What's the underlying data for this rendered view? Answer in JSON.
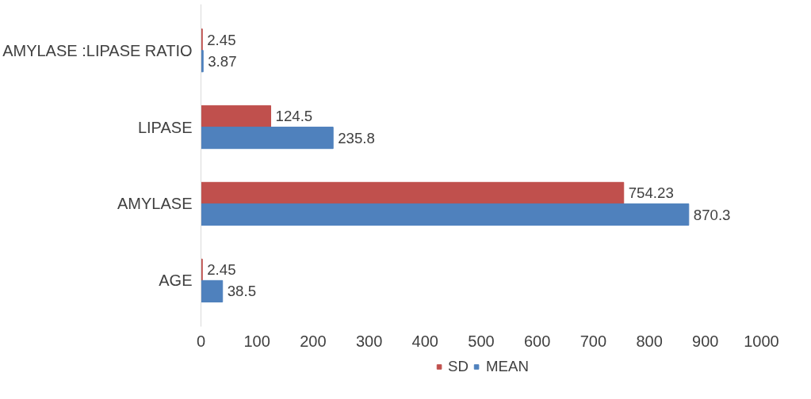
{
  "chart_data": {
    "type": "bar",
    "orientation": "horizontal",
    "categories": [
      "AMYLASE :LIPASE RATIO",
      "LIPASE",
      "AMYLASE",
      "AGE"
    ],
    "series": [
      {
        "name": "SD",
        "color": "#c0504d",
        "values": [
          2.45,
          124.5,
          754.23,
          2.45
        ]
      },
      {
        "name": "MEAN",
        "color": "#4f81bd",
        "values": [
          3.87,
          235.8,
          870.3,
          38.5
        ]
      }
    ],
    "xlim": [
      0,
      1000
    ],
    "xticks": [
      0,
      100,
      200,
      300,
      400,
      500,
      600,
      700,
      800,
      900,
      1000
    ],
    "grid": false,
    "legend": "bottom",
    "data_labels": true
  }
}
